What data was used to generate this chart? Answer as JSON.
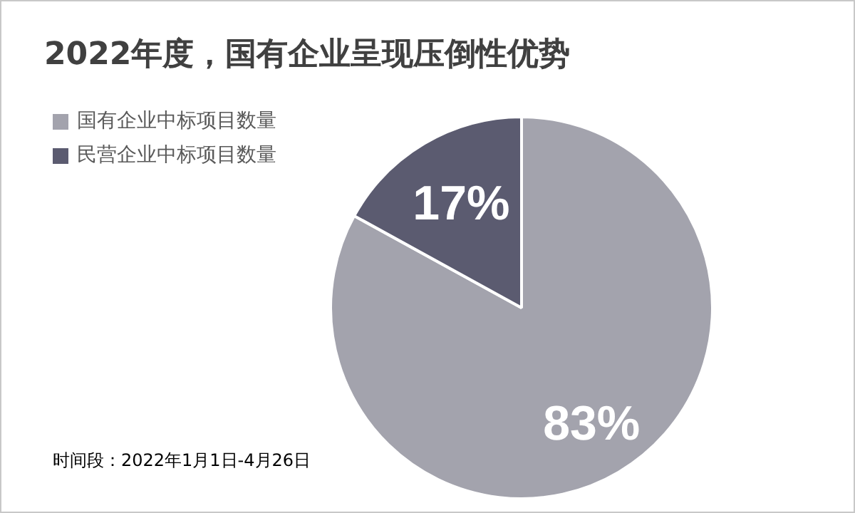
{
  "chart_data": {
    "type": "pie",
    "title": "2022年度，国有企业呈现压倒性优势",
    "categories": [
      "国有企业中标项目数量",
      "民营企业中标项目数量"
    ],
    "values": [
      83,
      17
    ],
    "colors": [
      "#a3a3ad",
      "#5b5b70"
    ],
    "value_labels": [
      "83%",
      "17%"
    ],
    "legend": "top left",
    "annotations": [
      "时间段：2022年1月1日-4月26日"
    ]
  }
}
